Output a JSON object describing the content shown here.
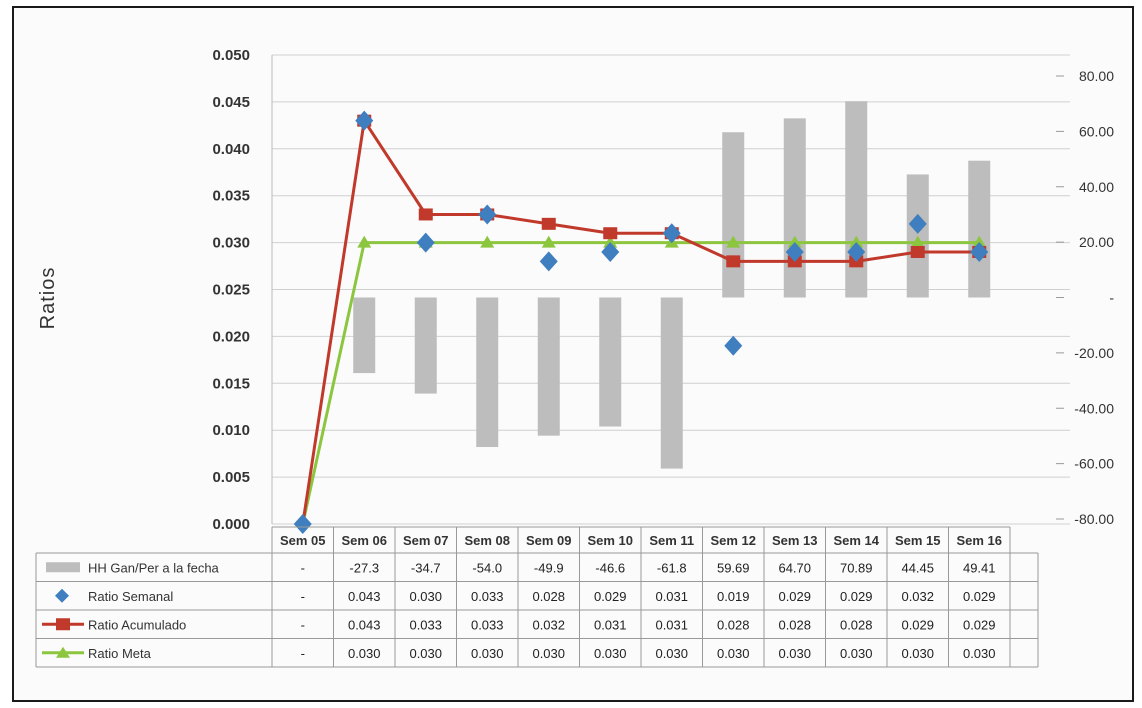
{
  "chart_data": {
    "type": "bar+line",
    "ylabel": "Ratios",
    "ylim": [
      0,
      0.05
    ],
    "y_ticks": [
      "0.000",
      "0.005",
      "0.010",
      "0.015",
      "0.020",
      "0.025",
      "0.030",
      "0.035",
      "0.040",
      "0.045",
      "0.050"
    ],
    "y2lim": [
      -80,
      80
    ],
    "y2_ticks": [
      "-80.00",
      "-60.00",
      "-40.00",
      "-20.00",
      "-",
      "20.00",
      "40.00",
      "60.00",
      "80.00"
    ],
    "categories": [
      "Sem 05",
      "Sem 06",
      "Sem 07",
      "Sem 08",
      "Sem 09",
      "Sem 10",
      "Sem 11",
      "Sem 12",
      "Sem 13",
      "Sem 14",
      "Sem 15",
      "Sem 16"
    ],
    "series": [
      {
        "name": "HH Gan/Per a la fecha",
        "kind": "bar",
        "axis": "secondary",
        "color": "#bdbdbd",
        "values": [
          null,
          -27.3,
          -34.7,
          -54.0,
          -49.9,
          -46.6,
          -61.8,
          59.69,
          64.7,
          70.89,
          44.45,
          49.41
        ],
        "labels": [
          "-",
          "-27.3",
          "-34.7",
          "-54.0",
          "-49.9",
          "-46.6",
          "-61.8",
          "59.69",
          "64.70",
          "70.89",
          "44.45",
          "49.41"
        ]
      },
      {
        "name": "Ratio Semanal",
        "kind": "scatter",
        "axis": "primary",
        "color": "#3f7fc0",
        "values": [
          0.0,
          0.043,
          0.03,
          0.033,
          0.028,
          0.029,
          0.031,
          0.019,
          0.029,
          0.029,
          0.032,
          0.029
        ],
        "labels": [
          "-",
          "0.043",
          "0.030",
          "0.033",
          "0.028",
          "0.029",
          "0.031",
          "0.019",
          "0.029",
          "0.029",
          "0.032",
          "0.029"
        ]
      },
      {
        "name": "Ratio Acumulado",
        "kind": "line",
        "axis": "primary",
        "color": "#c0392b",
        "values": [
          0.0,
          0.043,
          0.033,
          0.033,
          0.032,
          0.031,
          0.031,
          0.028,
          0.028,
          0.028,
          0.029,
          0.029
        ],
        "labels": [
          "-",
          "0.043",
          "0.033",
          "0.033",
          "0.032",
          "0.031",
          "0.031",
          "0.028",
          "0.028",
          "0.028",
          "0.029",
          "0.029"
        ]
      },
      {
        "name": "Ratio Meta",
        "kind": "line",
        "axis": "primary",
        "color": "#8cc63f",
        "values": [
          0.0,
          0.03,
          0.03,
          0.03,
          0.03,
          0.03,
          0.03,
          0.03,
          0.03,
          0.03,
          0.03,
          0.03
        ],
        "labels": [
          "-",
          "0.030",
          "0.030",
          "0.030",
          "0.030",
          "0.030",
          "0.030",
          "0.030",
          "0.030",
          "0.030",
          "0.030",
          "0.030"
        ]
      }
    ],
    "grid": true,
    "legend": "data-table-left"
  }
}
